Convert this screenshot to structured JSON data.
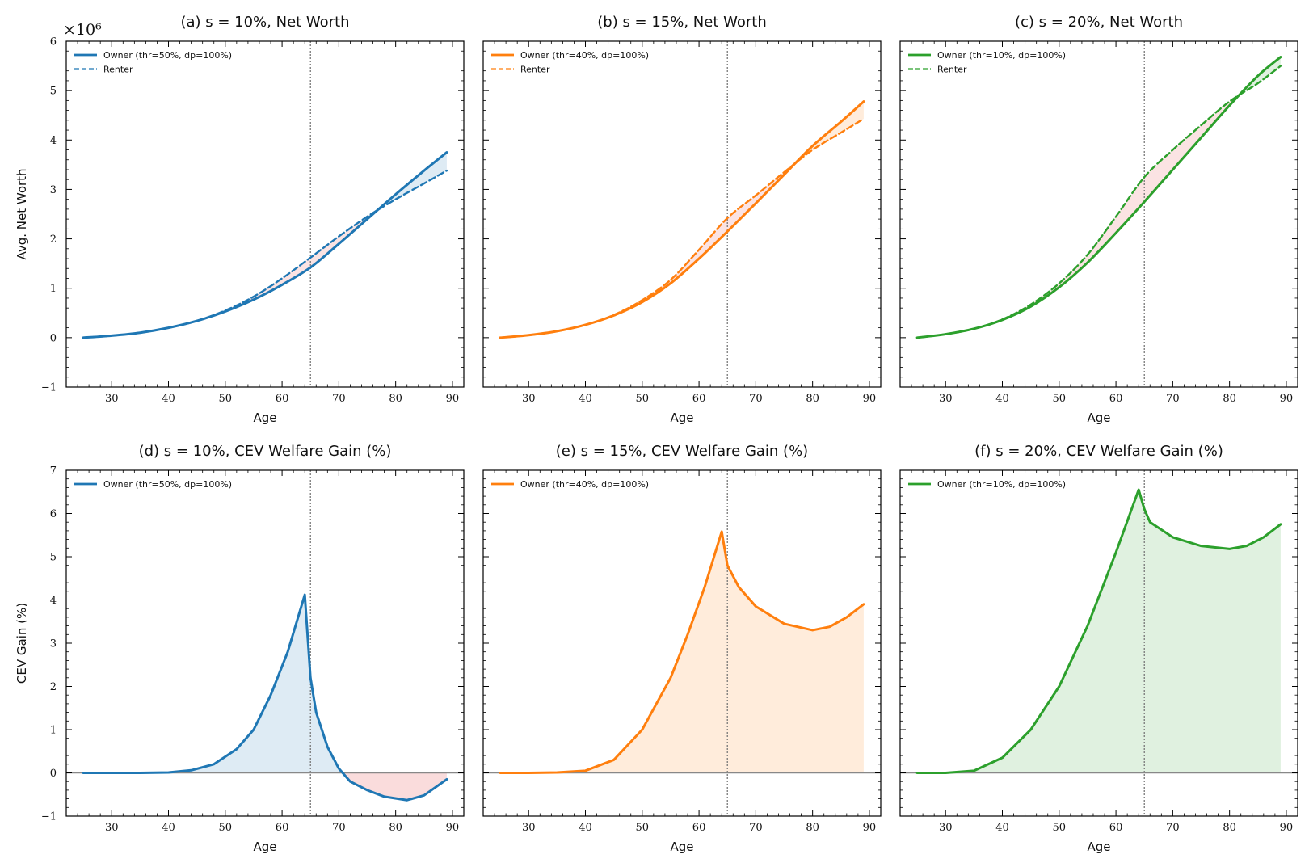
{
  "chart_data": [
    {
      "type": "line",
      "panel": "a",
      "row": 0,
      "col": 0,
      "title": "(a) s = 10%, Net Worth",
      "xlabel": "Age",
      "ylabel": "Avg. Net Worth",
      "y_multiplier": "×10⁶",
      "xlim": [
        22,
        92
      ],
      "ylim": [
        -1,
        6
      ],
      "xticks": [
        30,
        40,
        50,
        60,
        70,
        80,
        90
      ],
      "yticks": [
        -1,
        0,
        1,
        2,
        3,
        4,
        5,
        6
      ],
      "vline": 65,
      "color": "#1f77b4",
      "x": [
        25,
        30,
        35,
        40,
        45,
        50,
        55,
        60,
        65,
        70,
        75,
        80,
        85,
        89
      ],
      "series": [
        {
          "name": "Owner (thr=50%, dp=100%)",
          "style": "solid",
          "values": [
            0.0,
            0.04,
            0.1,
            0.2,
            0.34,
            0.53,
            0.77,
            1.07,
            1.42,
            1.9,
            2.4,
            2.9,
            3.38,
            3.75
          ]
        },
        {
          "name": "Renter",
          "style": "dashed",
          "values": [
            0.0,
            0.04,
            0.1,
            0.2,
            0.34,
            0.55,
            0.83,
            1.2,
            1.62,
            2.05,
            2.45,
            2.8,
            3.12,
            3.38
          ]
        }
      ]
    },
    {
      "type": "line",
      "panel": "b",
      "row": 0,
      "col": 1,
      "title": "(b) s = 15%, Net Worth",
      "xlabel": "Age",
      "ylabel": "",
      "xlim": [
        22,
        92
      ],
      "ylim": [
        -1,
        6
      ],
      "xticks": [
        30,
        40,
        50,
        60,
        70,
        80,
        90
      ],
      "yticks": [
        -1,
        0,
        1,
        2,
        3,
        4,
        5,
        6
      ],
      "vline": 65,
      "color": "#ff7f0e",
      "x": [
        25,
        30,
        35,
        40,
        45,
        50,
        55,
        60,
        65,
        70,
        75,
        80,
        85,
        89
      ],
      "series": [
        {
          "name": "Owner (thr=40%, dp=100%)",
          "style": "solid",
          "values": [
            0.0,
            0.05,
            0.13,
            0.26,
            0.45,
            0.72,
            1.1,
            1.6,
            2.15,
            2.72,
            3.3,
            3.88,
            4.37,
            4.78
          ]
        },
        {
          "name": "Renter",
          "style": "dashed",
          "values": [
            0.0,
            0.05,
            0.13,
            0.26,
            0.46,
            0.76,
            1.17,
            1.78,
            2.42,
            2.88,
            3.35,
            3.8,
            4.15,
            4.43
          ]
        }
      ]
    },
    {
      "type": "line",
      "panel": "c",
      "row": 0,
      "col": 2,
      "title": "(c) s = 20%, Net Worth",
      "xlabel": "Age",
      "ylabel": "",
      "xlim": [
        22,
        92
      ],
      "ylim": [
        -1,
        6
      ],
      "xticks": [
        30,
        40,
        50,
        60,
        70,
        80,
        90
      ],
      "yticks": [
        -1,
        0,
        1,
        2,
        3,
        4,
        5,
        6
      ],
      "vline": 65,
      "color": "#2ca02c",
      "x": [
        25,
        30,
        35,
        40,
        45,
        50,
        55,
        60,
        65,
        70,
        75,
        80,
        85,
        89
      ],
      "series": [
        {
          "name": "Owner (thr=10%, dp=100%)",
          "style": "solid",
          "values": [
            0.0,
            0.07,
            0.18,
            0.36,
            0.63,
            1.02,
            1.52,
            2.12,
            2.75,
            3.4,
            4.05,
            4.7,
            5.3,
            5.68
          ]
        },
        {
          "name": "Renter",
          "style": "dashed",
          "values": [
            0.0,
            0.07,
            0.18,
            0.37,
            0.67,
            1.1,
            1.68,
            2.45,
            3.25,
            3.8,
            4.3,
            4.78,
            5.15,
            5.5
          ]
        }
      ]
    },
    {
      "type": "area",
      "panel": "d",
      "row": 1,
      "col": 0,
      "title": "(d) s = 10%, CEV Welfare Gain (%)",
      "xlabel": "Age",
      "ylabel": "CEV Gain (%)",
      "xlim": [
        22,
        92
      ],
      "ylim": [
        -1,
        7
      ],
      "xticks": [
        30,
        40,
        50,
        60,
        70,
        80,
        90
      ],
      "yticks": [
        -1,
        0,
        1,
        2,
        3,
        4,
        5,
        6,
        7
      ],
      "vline": 65,
      "color": "#1f77b4",
      "x": [
        25,
        30,
        35,
        40,
        44,
        48,
        52,
        55,
        58,
        61,
        64,
        65,
        66,
        68,
        70,
        72,
        75,
        78,
        82,
        85,
        89
      ],
      "series": [
        {
          "name": "Owner (thr=50%, dp=100%)",
          "style": "solid",
          "values": [
            0.0,
            0.0,
            0.0,
            0.01,
            0.06,
            0.2,
            0.55,
            1.0,
            1.8,
            2.8,
            4.12,
            2.2,
            1.4,
            0.6,
            0.1,
            -0.2,
            -0.4,
            -0.55,
            -0.63,
            -0.52,
            -0.15
          ]
        }
      ]
    },
    {
      "type": "area",
      "panel": "e",
      "row": 1,
      "col": 1,
      "title": "(e) s = 15%, CEV Welfare Gain (%)",
      "xlabel": "Age",
      "ylabel": "",
      "xlim": [
        22,
        92
      ],
      "ylim": [
        -1,
        7
      ],
      "xticks": [
        30,
        40,
        50,
        60,
        70,
        80,
        90
      ],
      "yticks": [
        -1,
        0,
        1,
        2,
        3,
        4,
        5,
        6,
        7
      ],
      "vline": 65,
      "color": "#ff7f0e",
      "x": [
        25,
        30,
        35,
        40,
        45,
        50,
        55,
        58,
        61,
        64,
        65,
        67,
        70,
        75,
        80,
        83,
        86,
        89
      ],
      "series": [
        {
          "name": "Owner (thr=40%, dp=100%)",
          "style": "solid",
          "values": [
            0.0,
            0.0,
            0.01,
            0.05,
            0.3,
            1.0,
            2.2,
            3.2,
            4.3,
            5.58,
            4.8,
            4.3,
            3.85,
            3.45,
            3.3,
            3.38,
            3.6,
            3.9
          ]
        }
      ]
    },
    {
      "type": "area",
      "panel": "f",
      "row": 1,
      "col": 2,
      "title": "(f) s = 20%, CEV Welfare Gain (%)",
      "xlabel": "Age",
      "ylabel": "",
      "xlim": [
        22,
        92
      ],
      "ylim": [
        -1,
        7
      ],
      "xticks": [
        30,
        40,
        50,
        60,
        70,
        80,
        90
      ],
      "yticks": [
        -1,
        0,
        1,
        2,
        3,
        4,
        5,
        6,
        7
      ],
      "vline": 65,
      "color": "#2ca02c",
      "x": [
        25,
        30,
        35,
        40,
        45,
        50,
        55,
        60,
        64,
        65,
        66,
        70,
        75,
        80,
        83,
        86,
        89
      ],
      "series": [
        {
          "name": "Owner (thr=10%, dp=100%)",
          "style": "solid",
          "values": [
            0.0,
            0.0,
            0.05,
            0.35,
            1.0,
            2.0,
            3.4,
            5.1,
            6.55,
            6.1,
            5.8,
            5.45,
            5.25,
            5.18,
            5.25,
            5.45,
            5.75
          ]
        }
      ]
    }
  ],
  "colors": {
    "positive_fill_alpha": 0.15,
    "negative_fill": "#f8d0d0",
    "zero_line": "#888888",
    "vline": "#777777"
  }
}
